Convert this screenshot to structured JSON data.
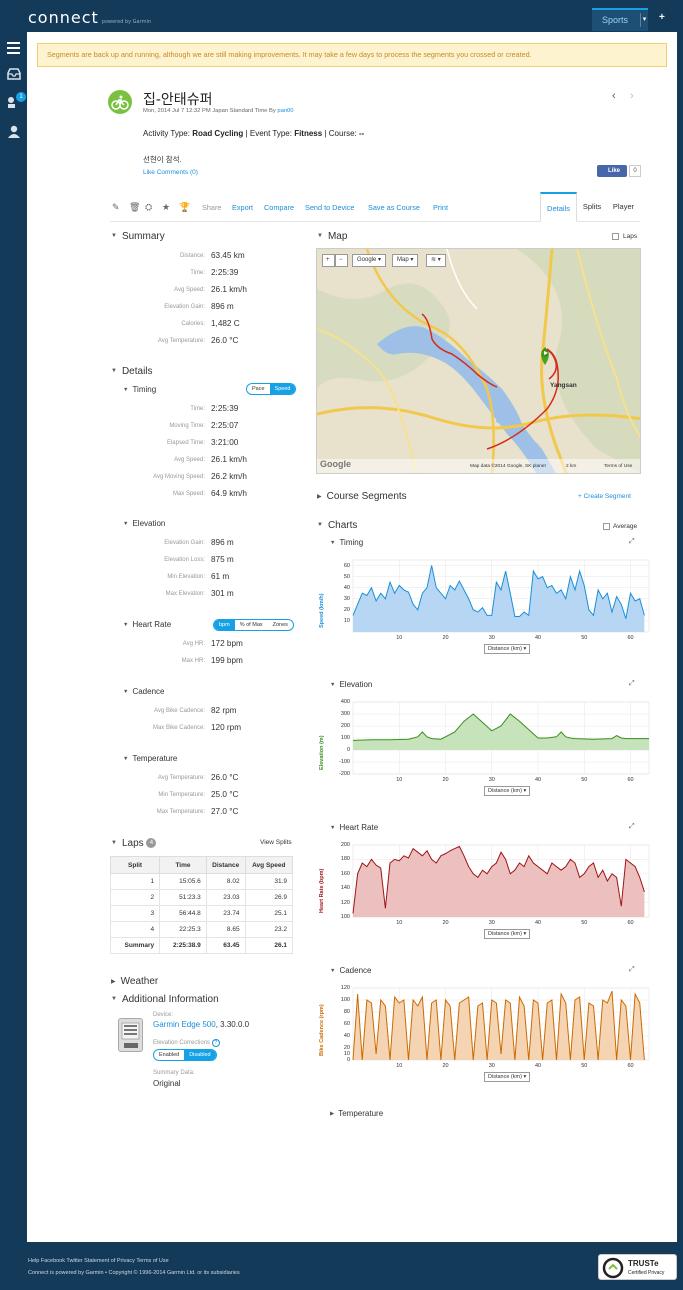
{
  "header": {
    "logo": "connect",
    "logo_sub": "powered by Garmin",
    "sports": "Sports",
    "sports_dd": "▾",
    "plus": "+"
  },
  "sidebar": {
    "badge": "1"
  },
  "banner": "Segments are back up and running, although we are still making improvements. It may take a few days to process the segments you crossed or created.",
  "activity": {
    "title": "집-안태슈퍼",
    "subtitle_pre": "Mon, 2014 Jul 7 12:32 PM Japan Standard Time By ",
    "user": "pan00",
    "activity_type_label": "Activity Type: ",
    "activity_type": "Road Cycling",
    "event_type_label": " | Event Type: ",
    "event_type": "Fitness",
    "course_label": " | Course: ",
    "course": "--",
    "note": "선현이 참석.",
    "like_comments": "Like Comments (0)",
    "fb_like": "Like",
    "fb_count": "0",
    "prev": "‹",
    "next": "›"
  },
  "toolbar": {
    "share": "Share",
    "export": "Export",
    "compare": "Compare",
    "send": "Send to Device",
    "save_course": "Save as Course",
    "print": "Print",
    "tab_details": "Details",
    "tab_splits": "Splits",
    "tab_player": "Player"
  },
  "summary": {
    "heading": "Summary",
    "rows": [
      {
        "label": "Distance:",
        "value": "63.45 km"
      },
      {
        "label": "Time:",
        "value": "2:25:39"
      },
      {
        "label": "Avg Speed:",
        "value": "26.1 km/h"
      },
      {
        "label": "Elevation Gain:",
        "value": "896 m"
      },
      {
        "label": "Calories:",
        "value": "1,482 C"
      },
      {
        "label": "Avg Temperature:",
        "value": "26.0 °C"
      }
    ]
  },
  "details": {
    "heading": "Details",
    "timing": {
      "heading": "Timing",
      "seg": [
        "Pace",
        "Speed"
      ],
      "rows": [
        {
          "label": "Time:",
          "value": "2:25:39"
        },
        {
          "label": "Moving Time:",
          "value": "2:25:07"
        },
        {
          "label": "Elapsed Time:",
          "value": "3:21:00"
        },
        {
          "label": "Avg Speed:",
          "value": "26.1 km/h"
        },
        {
          "label": "Avg Moving Speed:",
          "value": "26.2 km/h"
        },
        {
          "label": "Max Speed:",
          "value": "64.9 km/h"
        }
      ]
    },
    "elevation": {
      "heading": "Elevation",
      "rows": [
        {
          "label": "Elevation Gain:",
          "value": "896 m"
        },
        {
          "label": "Elevation Loss:",
          "value": "875 m"
        },
        {
          "label": "Min Elevation:",
          "value": "61 m"
        },
        {
          "label": "Max Elevation:",
          "value": "301 m"
        }
      ]
    },
    "heart": {
      "heading": "Heart Rate",
      "seg": [
        "bpm",
        "% of Max",
        "Zones"
      ],
      "rows": [
        {
          "label": "Avg HR:",
          "value": "172 bpm"
        },
        {
          "label": "Max HR:",
          "value": "199 bpm"
        }
      ]
    },
    "cadence": {
      "heading": "Cadence",
      "rows": [
        {
          "label": "Avg Bike Cadence:",
          "value": "82 rpm"
        },
        {
          "label": "Max Bike Cadence:",
          "value": "120 rpm"
        }
      ]
    },
    "temperature": {
      "heading": "Temperature",
      "rows": [
        {
          "label": "Avg Temperature:",
          "value": "26.0 °C"
        },
        {
          "label": "Min Temperature:",
          "value": "25.0 °C"
        },
        {
          "label": "Max Temperature:",
          "value": "27.0 °C"
        }
      ]
    }
  },
  "laps": {
    "heading": "Laps",
    "count": "4",
    "view_splits": "View Splits",
    "columns": [
      "Split",
      "Time",
      "Distance",
      "Avg Speed"
    ],
    "rows": [
      [
        "1",
        "15:05.6",
        "8.02",
        "31.9"
      ],
      [
        "2",
        "51:23.3",
        "23.03",
        "26.9"
      ],
      [
        "3",
        "56:44.8",
        "23.74",
        "25.1"
      ],
      [
        "4",
        "22:25.3",
        "8.65",
        "23.2"
      ]
    ],
    "summary": [
      "Summary",
      "2:25:38.9",
      "63.45",
      "26.1"
    ]
  },
  "weather": {
    "heading": "Weather"
  },
  "additional": {
    "heading": "Additional Information",
    "device_label": "Device:",
    "device": "Garmin Edge 500",
    "device_version": ", 3.30.0.0",
    "elev_corr": "Elevation Corrections",
    "enabled": "Enabled",
    "disabled": "Disabled",
    "summary_data_label": "Summary Data:",
    "summary_data": "Original"
  },
  "map": {
    "heading": "Map",
    "laps": "Laps",
    "zoom_in": "+",
    "zoom_out": "−",
    "google": "Google ▾",
    "map_btn": "Map ▾",
    "layers": "≋ ▾",
    "town": "Yangsan",
    "attribution": "Map data ©2014 Google, SK planet",
    "scale": "2 km",
    "terms": "Terms of Use",
    "google_logo": "Google"
  },
  "segments": {
    "heading": "Course Segments",
    "create": "+ Create Segment"
  },
  "charts": {
    "heading": "Charts",
    "average": "Average",
    "distance_dd": "Distance (km) ▾",
    "temperature_heading": "Temperature"
  },
  "colors": {
    "speed": "#1a8fd8",
    "elevation": "#3a8f1e",
    "heart": "#9e1414",
    "cadence": "#cc6a00",
    "accent": "#16a1e6"
  },
  "chart_data": [
    {
      "type": "area",
      "title": "Timing",
      "ylabel": "Speed (km/h)",
      "xlabel": "Distance (km)",
      "ylim": [
        0,
        65
      ],
      "yticks": [
        10,
        20,
        30,
        40,
        50,
        60
      ],
      "xlim": [
        0,
        64
      ],
      "xticks": [
        10,
        20,
        30,
        40,
        50,
        60
      ],
      "x": [
        0,
        2,
        3,
        4,
        5,
        6,
        7,
        8,
        9,
        10,
        11,
        12,
        13,
        14,
        15,
        16,
        17,
        18,
        19,
        20,
        21,
        22,
        23,
        24,
        25,
        26,
        27,
        28,
        29,
        30,
        31,
        32,
        33,
        34,
        35,
        36,
        37,
        38,
        39,
        40,
        41,
        42,
        43,
        44,
        45,
        46,
        47,
        48,
        49,
        50,
        51,
        52,
        53,
        54,
        55,
        56,
        57,
        58,
        59,
        60,
        61,
        62,
        63
      ],
      "y": [
        15,
        35,
        33,
        40,
        28,
        35,
        30,
        45,
        35,
        42,
        38,
        36,
        25,
        20,
        35,
        40,
        60,
        40,
        35,
        30,
        42,
        38,
        46,
        38,
        30,
        20,
        18,
        22,
        15,
        15,
        45,
        38,
        55,
        35,
        14,
        14,
        18,
        15,
        55,
        48,
        50,
        40,
        42,
        35,
        38,
        30,
        50,
        38,
        55,
        42,
        20,
        15,
        38,
        30,
        35,
        18,
        32,
        25,
        12,
        35,
        28,
        30,
        15
      ]
    },
    {
      "type": "area",
      "title": "Elevation",
      "ylabel": "Elevation (m)",
      "xlabel": "Distance (km)",
      "ylim": [
        -200,
        400
      ],
      "yticks": [
        -200,
        -100,
        0,
        100,
        200,
        300,
        400
      ],
      "xlim": [
        0,
        64
      ],
      "xticks": [
        10,
        20,
        30,
        40,
        50,
        60
      ],
      "x": [
        0,
        4,
        8,
        12,
        14,
        15,
        16,
        17,
        19,
        22,
        24,
        26,
        28,
        30,
        32,
        34,
        36,
        38,
        40,
        42,
        44,
        45,
        46,
        47,
        48,
        52,
        56,
        57,
        58,
        59,
        60,
        64
      ],
      "y": [
        80,
        85,
        85,
        90,
        110,
        150,
        110,
        95,
        90,
        150,
        240,
        300,
        230,
        160,
        200,
        300,
        240,
        170,
        100,
        100,
        110,
        150,
        110,
        100,
        95,
        90,
        95,
        120,
        100,
        95,
        95,
        95
      ]
    },
    {
      "type": "area",
      "title": "Heart Rate",
      "ylabel": "Heart Rate (bpm)",
      "xlabel": "Distance (km)",
      "ylim": [
        100,
        200
      ],
      "yticks": [
        100,
        120,
        140,
        160,
        180,
        200
      ],
      "xlim": [
        0,
        64
      ],
      "xticks": [
        10,
        20,
        30,
        40,
        50,
        60
      ],
      "x": [
        0,
        1,
        2,
        3,
        4,
        5,
        6,
        7,
        8,
        9,
        10,
        11,
        12,
        13,
        14,
        15,
        16,
        17,
        18,
        19,
        20,
        21,
        22,
        23,
        24,
        25,
        26,
        27,
        28,
        29,
        30,
        31,
        32,
        33,
        34,
        35,
        36,
        37,
        38,
        39,
        40,
        41,
        42,
        43,
        44,
        45,
        46,
        47,
        48,
        49,
        50,
        51,
        52,
        53,
        54,
        55,
        56,
        57,
        58,
        59,
        60,
        61,
        62,
        63
      ],
      "y": [
        105,
        160,
        175,
        170,
        180,
        172,
        168,
        112,
        175,
        180,
        178,
        185,
        182,
        195,
        190,
        185,
        192,
        180,
        175,
        185,
        188,
        192,
        195,
        198,
        185,
        170,
        160,
        155,
        165,
        160,
        170,
        175,
        190,
        180,
        160,
        165,
        175,
        170,
        185,
        175,
        170,
        165,
        160,
        175,
        170,
        165,
        170,
        180,
        175,
        155,
        160,
        170,
        175,
        155,
        165,
        150,
        160,
        155,
        115,
        180,
        175,
        170,
        155,
        135
      ]
    },
    {
      "type": "area",
      "title": "Cadence",
      "ylabel": "Bike Cadence (rpm)",
      "xlabel": "Distance (km)",
      "ylim": [
        0,
        120
      ],
      "yticks": [
        0,
        10,
        20,
        40,
        60,
        80,
        100,
        120
      ],
      "xlim": [
        0,
        64
      ],
      "xticks": [
        10,
        20,
        30,
        40,
        50,
        60
      ],
      "x": [
        0,
        1,
        2,
        3,
        4,
        5,
        6,
        7,
        8,
        9,
        10,
        11,
        12,
        13,
        14,
        15,
        16,
        17,
        18,
        19,
        20,
        21,
        22,
        23,
        24,
        25,
        26,
        27,
        28,
        29,
        30,
        31,
        32,
        33,
        34,
        35,
        36,
        37,
        38,
        39,
        40,
        41,
        42,
        43,
        44,
        45,
        46,
        47,
        48,
        49,
        50,
        51,
        52,
        53,
        54,
        55,
        56,
        57,
        58,
        59,
        60,
        61,
        62,
        63
      ],
      "y": [
        0,
        110,
        0,
        100,
        95,
        10,
        100,
        90,
        0,
        105,
        95,
        100,
        0,
        100,
        90,
        105,
        0,
        95,
        100,
        0,
        100,
        90,
        0,
        95,
        100,
        105,
        0,
        90,
        95,
        0,
        100,
        95,
        10,
        100,
        95,
        0,
        105,
        90,
        0,
        100,
        95,
        0,
        95,
        100,
        0,
        110,
        95,
        0,
        100,
        105,
        0,
        95,
        90,
        0,
        100,
        95,
        115,
        0,
        100,
        90,
        0,
        110,
        95,
        0
      ]
    }
  ],
  "footer": {
    "links": "Help Facebook Twitter Statement of Privacy Terms of Use",
    "copyright": "Connect is powered by Garmin • Copyright © 1996-2014 Garmin Ltd. or its subsidiaries",
    "truste": "TRUSTe",
    "truste_sub": "Certified Privacy"
  }
}
